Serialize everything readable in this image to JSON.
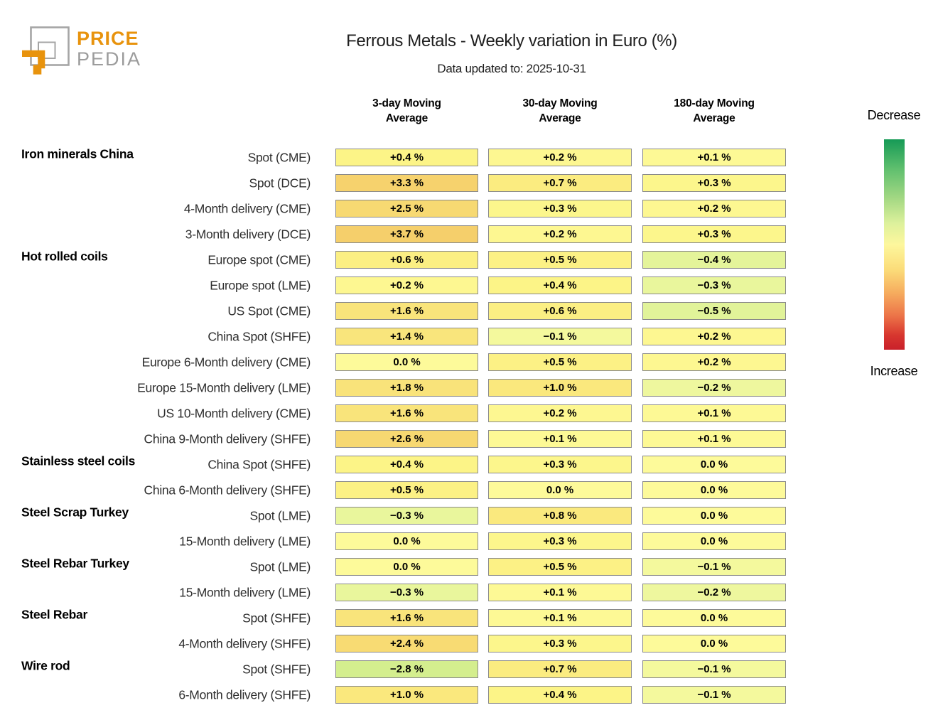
{
  "brand": {
    "name_top": "PRICE",
    "name_bottom": "PEDIA",
    "orange": "#E8930D",
    "gray": "#9C9C9C"
  },
  "chart_data": {
    "type": "heatmap",
    "title": "Ferrous Metals - Weekly variation in Euro (%)",
    "subtitle": "Data updated to: 2025-10-31",
    "unit": "%",
    "columns": [
      "3-day Moving Average",
      "30-day Moving Average",
      "180-day Moving Average"
    ],
    "rows": [
      {
        "group": "Iron minerals China",
        "label": "Spot (CME)",
        "values": [
          0.4,
          0.2,
          0.1
        ]
      },
      {
        "group": "",
        "label": "Spot (DCE)",
        "values": [
          3.3,
          0.7,
          0.3
        ]
      },
      {
        "group": "",
        "label": "4-Month delivery (CME)",
        "values": [
          2.5,
          0.3,
          0.2
        ]
      },
      {
        "group": "",
        "label": "3-Month delivery (DCE)",
        "values": [
          3.7,
          0.2,
          0.3
        ]
      },
      {
        "group": "Hot rolled coils",
        "label": "Europe spot (CME)",
        "values": [
          0.6,
          0.5,
          -0.4
        ]
      },
      {
        "group": "",
        "label": "Europe spot (LME)",
        "values": [
          0.2,
          0.4,
          -0.3
        ]
      },
      {
        "group": "",
        "label": "US Spot (CME)",
        "values": [
          1.6,
          0.6,
          -0.5
        ]
      },
      {
        "group": "",
        "label": "China Spot (SHFE)",
        "values": [
          1.4,
          -0.1,
          0.2
        ]
      },
      {
        "group": "",
        "label": "Europe 6-Month delivery (CME)",
        "values": [
          0.0,
          0.5,
          0.2
        ]
      },
      {
        "group": "",
        "label": "Europe 15-Month delivery (LME)",
        "values": [
          1.8,
          1.0,
          -0.2
        ]
      },
      {
        "group": "",
        "label": "US 10-Month delivery (CME)",
        "values": [
          1.6,
          0.2,
          0.1
        ]
      },
      {
        "group": "",
        "label": "China 9-Month delivery (SHFE)",
        "values": [
          2.6,
          0.1,
          0.1
        ]
      },
      {
        "group": "Stainless steel coils",
        "label": "China Spot (SHFE)",
        "values": [
          0.4,
          0.3,
          0.0
        ]
      },
      {
        "group": "",
        "label": "China 6-Month delivery (SHFE)",
        "values": [
          0.5,
          0.0,
          0.0
        ]
      },
      {
        "group": "Steel Scrap Turkey",
        "label": "Spot (LME)",
        "values": [
          -0.3,
          0.8,
          0.0
        ]
      },
      {
        "group": "",
        "label": "15-Month delivery (LME)",
        "values": [
          0.0,
          0.3,
          0.0
        ]
      },
      {
        "group": "Steel Rebar Turkey",
        "label": "Spot (LME)",
        "values": [
          0.0,
          0.5,
          -0.1
        ]
      },
      {
        "group": "",
        "label": "15-Month delivery (LME)",
        "values": [
          -0.3,
          0.1,
          -0.2
        ]
      },
      {
        "group": "Steel Rebar",
        "label": "Spot (SHFE)",
        "values": [
          1.6,
          0.1,
          0.0
        ]
      },
      {
        "group": "",
        "label": "4-Month delivery (SHFE)",
        "values": [
          2.4,
          0.3,
          0.0
        ]
      },
      {
        "group": "Wire rod",
        "label": "Spot (SHFE)",
        "values": [
          -2.8,
          0.7,
          -0.1
        ]
      },
      {
        "group": "",
        "label": "6-Month delivery (SHFE)",
        "values": [
          1.0,
          0.4,
          -0.1
        ]
      }
    ],
    "legend": {
      "top_label": "Decrease",
      "bottom_label": "Increase"
    },
    "cell_border_color": "#8a8a8a",
    "colorscale_anchors": [
      [
        -4.0,
        "#c3e77d"
      ],
      [
        -2.8,
        "#d4ee8e"
      ],
      [
        -1.0,
        "#dcf094"
      ],
      [
        -0.45,
        "#e2f399"
      ],
      [
        -0.15,
        "#f0f89f"
      ],
      [
        0.0,
        "#fdfa9a"
      ],
      [
        0.4,
        "#fcf487"
      ],
      [
        0.8,
        "#fae97e"
      ],
      [
        1.8,
        "#f9e37a"
      ],
      [
        2.6,
        "#f7d871"
      ],
      [
        3.7,
        "#f5cf6b"
      ],
      [
        5.0,
        "#f3c362"
      ]
    ],
    "colorbar_stops": [
      [
        "#169a56",
        0
      ],
      [
        "#5fbf6e",
        14
      ],
      [
        "#a3d883",
        28
      ],
      [
        "#ddf19c",
        40
      ],
      [
        "#fdf79d",
        50
      ],
      [
        "#fbdc79",
        62
      ],
      [
        "#f6ac5e",
        73
      ],
      [
        "#ec7348",
        84
      ],
      [
        "#d8372f",
        93
      ],
      [
        "#c9202a",
        100
      ]
    ]
  }
}
